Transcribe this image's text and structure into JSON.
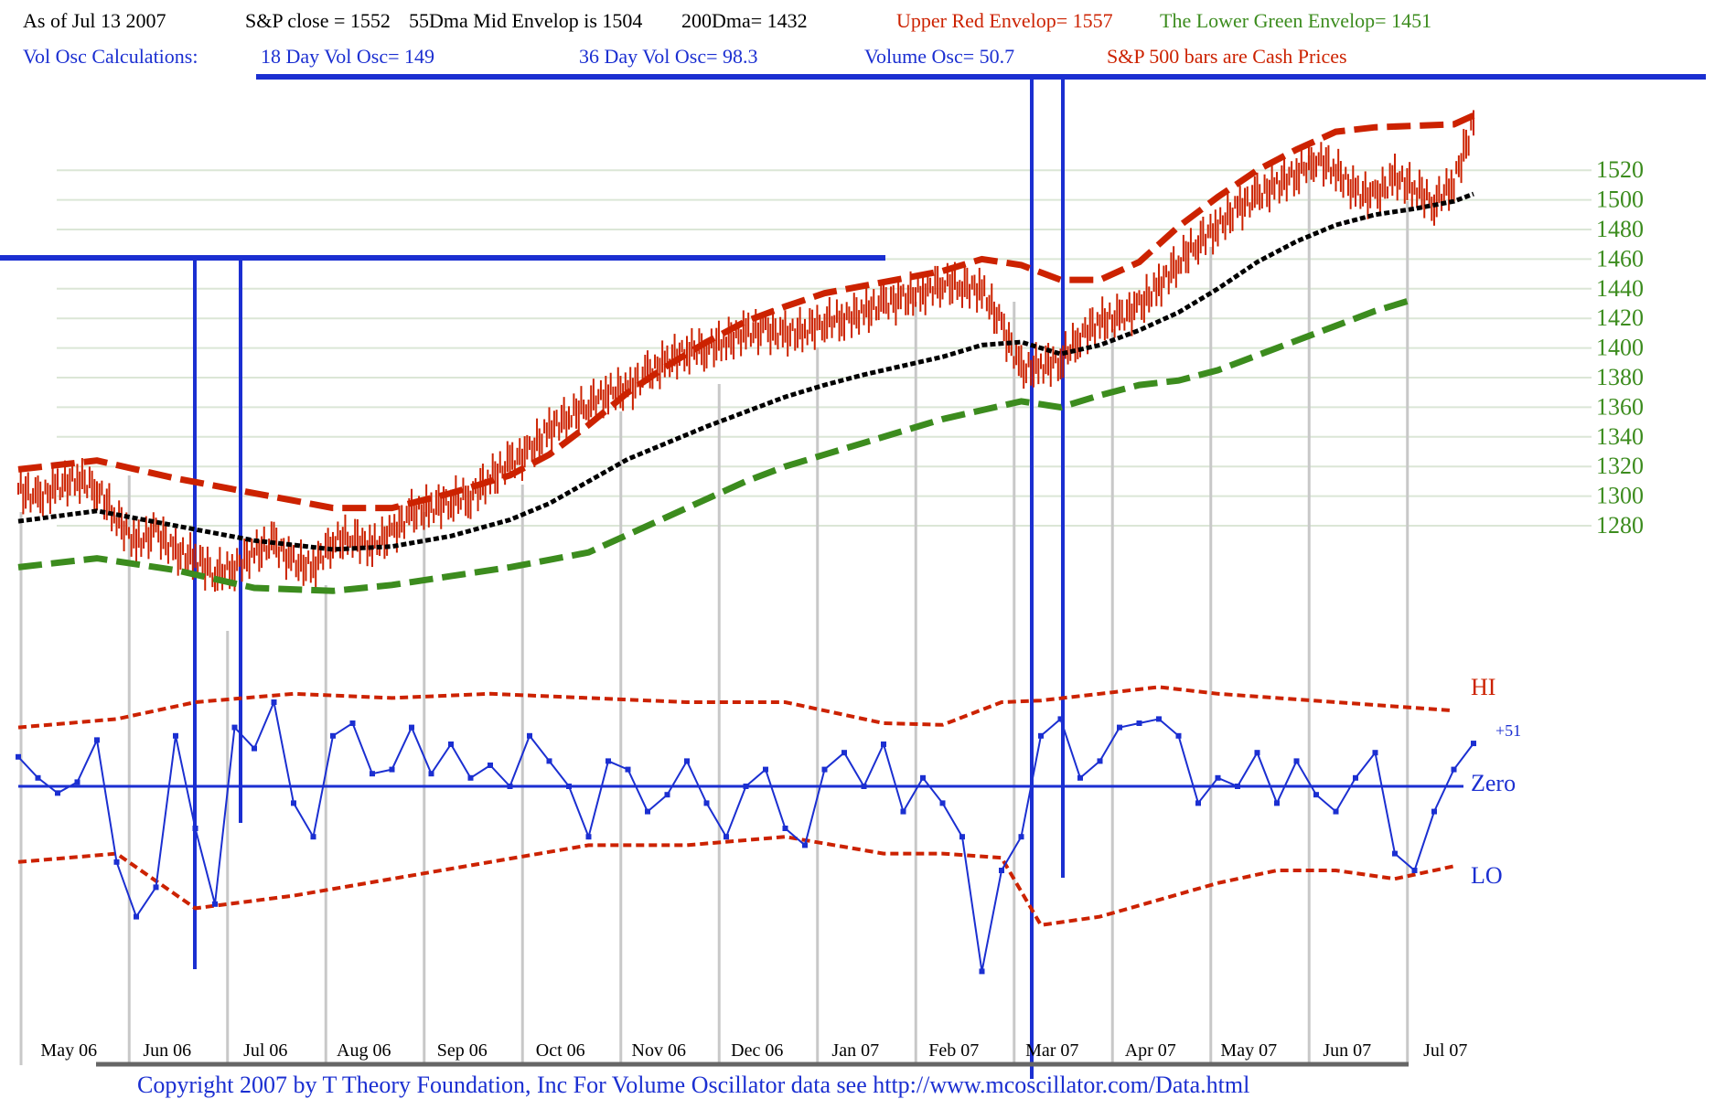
{
  "header": {
    "row1": [
      {
        "text": "As of Jul 13  2007",
        "color": "#000000"
      },
      {
        "text": "S&P close = 1552",
        "color": "#000000"
      },
      {
        "text": "55Dma Mid Envelop is  1504",
        "color": "#000000"
      },
      {
        "text": "200Dma=  1432",
        "color": "#000000"
      },
      {
        "text": "Upper Red Envelop= 1557",
        "color": "#cc2200"
      },
      {
        "text": "The Lower Green Envelop=  1451",
        "color": "#3c8c1e"
      }
    ],
    "row2": [
      {
        "text": "Vol Osc Calculations:",
        "color": "#1b2fd1"
      },
      {
        "text": "18 Day Vol Osc=  149",
        "color": "#1b2fd1"
      },
      {
        "text": "36 Day Vol Osc=  98.3",
        "color": "#1b2fd1"
      },
      {
        "text": "Volume Osc=  50.7",
        "color": "#1b2fd1"
      },
      {
        "text": "S&P 500 bars are Cash Prices",
        "color": "#cc2200"
      }
    ]
  },
  "copyright": "Copyright 2007 by T Theory Foundation, Inc  For Volume Oscillator data see http://www.mcoscillator.com/Data.html",
  "colors": {
    "price_bars": "#cc2200",
    "upper_envelope": "#cc2200",
    "mid_envelope": "#000000",
    "lower_envelope": "#3c8c1e",
    "oscillator": "#1b2fd1",
    "osc_bands": "#cc2200",
    "zero_line": "#1b2fd1",
    "gridlines": "#dbe6d6",
    "vertical_markers": "#c8c8c8",
    "price_axis_labels": "#3c8c1e"
  },
  "chart_data": [
    {
      "type": "line",
      "title": "",
      "y_ticks": [
        1280,
        1300,
        1320,
        1340,
        1360,
        1380,
        1400,
        1420,
        1440,
        1460,
        1480,
        1500,
        1520
      ],
      "x_month_labels": [
        "May 06",
        "Jun 06",
        "Jul 06",
        "Aug 06",
        "Sep 06",
        "Oct 06",
        "Nov 06",
        "Dec 06",
        "Jan 07",
        "Feb 07",
        "Mar 07",
        "Apr 07",
        "May 07",
        "Jun 07",
        "Jul 07"
      ],
      "x_month_index": [
        0.3,
        1.3,
        2.3,
        3.3,
        4.3,
        5.3,
        6.3,
        7.3,
        8.3,
        9.3,
        10.3,
        11.3,
        12.3,
        13.3,
        14.3
      ],
      "x_unit": "months since May 1 2006",
      "series": [
        {
          "name": "S&P 500 (cash)",
          "x": [
            -0.4,
            -0.2,
            0.0,
            0.2,
            0.4,
            0.6,
            0.8,
            1.0,
            1.2,
            1.4,
            1.6,
            1.8,
            2.0,
            2.2,
            2.4,
            2.6,
            2.8,
            3.0,
            3.2,
            3.4,
            3.6,
            3.8,
            4.0,
            4.2,
            4.4,
            4.6,
            4.8,
            5.0,
            5.2,
            5.4,
            5.6,
            5.8,
            6.0,
            6.2,
            6.4,
            6.6,
            6.8,
            7.0,
            7.2,
            7.4,
            7.6,
            7.8,
            8.0,
            8.2,
            8.4,
            8.6,
            8.8,
            9.0,
            9.2,
            9.4,
            9.6,
            9.8,
            10.0,
            10.2,
            10.4,
            10.6,
            10.8,
            11.0,
            11.2,
            11.4,
            11.6,
            11.8,
            12.0,
            12.2,
            12.4,
            12.6,
            12.8,
            13.0,
            13.2,
            13.4,
            13.6,
            13.8,
            14.0,
            14.2,
            14.4
          ],
          "y": [
            1305,
            1298,
            1306,
            1312,
            1305,
            1285,
            1268,
            1276,
            1262,
            1258,
            1248,
            1252,
            1262,
            1268,
            1255,
            1252,
            1270,
            1272,
            1266,
            1275,
            1288,
            1292,
            1297,
            1300,
            1312,
            1322,
            1330,
            1345,
            1354,
            1362,
            1370,
            1372,
            1382,
            1391,
            1398,
            1400,
            1405,
            1410,
            1412,
            1409,
            1412,
            1418,
            1420,
            1424,
            1430,
            1433,
            1438,
            1444,
            1442,
            1439,
            1415,
            1385,
            1388,
            1392,
            1408,
            1418,
            1420,
            1428,
            1442,
            1458,
            1472,
            1482,
            1494,
            1502,
            1510,
            1518,
            1528,
            1520,
            1505,
            1502,
            1515,
            1508,
            1498,
            1512,
            1552
          ]
        },
        {
          "name": "Upper Red Envelop",
          "x": [
            -0.4,
            0.4,
            1.2,
            2.0,
            2.8,
            3.4,
            4.0,
            4.6,
            5.0,
            5.4,
            5.8,
            6.2,
            6.6,
            7.0,
            7.4,
            7.8,
            8.2,
            8.6,
            9.0,
            9.4,
            9.8,
            10.2,
            10.6,
            11.0,
            11.4,
            11.8,
            12.2,
            12.6,
            13.0,
            13.4,
            13.8,
            14.2,
            14.4
          ],
          "y": [
            1318,
            1324,
            1312,
            1302,
            1292,
            1292,
            1302,
            1314,
            1328,
            1348,
            1370,
            1388,
            1404,
            1418,
            1428,
            1437,
            1442,
            1447,
            1452,
            1460,
            1456,
            1446,
            1446,
            1458,
            1482,
            1502,
            1520,
            1534,
            1546,
            1549,
            1550,
            1551,
            1557
          ]
        },
        {
          "name": "55Dma Mid Envelop",
          "x": [
            -0.4,
            0.4,
            1.2,
            2.0,
            2.8,
            3.4,
            4.0,
            4.6,
            5.0,
            5.4,
            5.8,
            6.2,
            6.6,
            7.0,
            7.4,
            7.8,
            8.2,
            8.6,
            9.0,
            9.4,
            9.8,
            10.2,
            10.6,
            11.0,
            11.4,
            11.8,
            12.2,
            12.6,
            13.0,
            13.4,
            13.8,
            14.2,
            14.4
          ],
          "y": [
            1283,
            1290,
            1280,
            1270,
            1264,
            1266,
            1273,
            1284,
            1295,
            1310,
            1325,
            1336,
            1347,
            1357,
            1367,
            1375,
            1382,
            1388,
            1394,
            1402,
            1404,
            1396,
            1402,
            1412,
            1424,
            1440,
            1458,
            1472,
            1483,
            1490,
            1494,
            1499,
            1504
          ]
        },
        {
          "name": "The Lower Green Envelop",
          "x": [
            -0.4,
            0.4,
            1.2,
            2.0,
            2.8,
            3.4,
            4.0,
            4.6,
            5.0,
            5.4,
            5.8,
            6.2,
            6.6,
            7.0,
            7.4,
            7.8,
            8.2,
            8.6,
            9.0,
            9.4,
            9.8,
            10.2,
            10.6,
            11.0,
            11.4,
            11.8,
            12.2,
            12.6,
            13.0,
            13.4,
            13.8
          ],
          "y": [
            1252,
            1258,
            1250,
            1238,
            1236,
            1240,
            1246,
            1252,
            1257,
            1262,
            1274,
            1286,
            1298,
            1310,
            1320,
            1328,
            1336,
            1344,
            1352,
            1358,
            1364,
            1360,
            1368,
            1375,
            1378,
            1385,
            1395,
            1405,
            1415,
            1425,
            1433
          ]
        }
      ]
    },
    {
      "type": "line",
      "title": "",
      "labels": {
        "hi": "HI",
        "zero": "Zero",
        "lo": "LO",
        "last": "+51"
      },
      "series": [
        {
          "name": "Volume Oscillator",
          "x": [
            -0.4,
            -0.2,
            0.0,
            0.2,
            0.4,
            0.6,
            0.8,
            1.0,
            1.2,
            1.4,
            1.6,
            1.8,
            2.0,
            2.2,
            2.4,
            2.6,
            2.8,
            3.0,
            3.2,
            3.4,
            3.6,
            3.8,
            4.0,
            4.2,
            4.4,
            4.6,
            4.8,
            5.0,
            5.2,
            5.4,
            5.6,
            5.8,
            6.0,
            6.2,
            6.4,
            6.6,
            6.8,
            7.0,
            7.2,
            7.4,
            7.6,
            7.8,
            8.0,
            8.2,
            8.4,
            8.6,
            8.8,
            9.0,
            9.2,
            9.4,
            9.6,
            9.8,
            10.0,
            10.2,
            10.4,
            10.6,
            10.8,
            11.0,
            11.2,
            11.4,
            11.6,
            11.8,
            12.0,
            12.2,
            12.4,
            12.6,
            12.8,
            13.0,
            13.2,
            13.4,
            13.6,
            13.8,
            14.0,
            14.2,
            14.4
          ],
          "y": [
            35,
            10,
            -8,
            5,
            55,
            -90,
            -155,
            -120,
            60,
            -50,
            -140,
            70,
            45,
            100,
            -20,
            -60,
            60,
            75,
            15,
            20,
            70,
            15,
            50,
            10,
            25,
            0,
            60,
            30,
            0,
            -60,
            30,
            20,
            -30,
            -10,
            30,
            -20,
            -60,
            0,
            20,
            -50,
            -70,
            20,
            40,
            0,
            50,
            -30,
            10,
            -20,
            -60,
            -220,
            -100,
            -60,
            60,
            80,
            10,
            30,
            70,
            75,
            80,
            60,
            -20,
            10,
            0,
            40,
            -20,
            30,
            -10,
            -30,
            10,
            40,
            -80,
            -100,
            -30,
            20,
            51
          ]
        },
        {
          "name": "HI",
          "x": [
            -0.4,
            0.6,
            1.4,
            2.4,
            3.4,
            4.4,
            5.4,
            6.4,
            7.4,
            8.4,
            9.0,
            9.6,
            10.0,
            10.6,
            11.2,
            11.8,
            12.4,
            13.0,
            13.6,
            14.2
          ],
          "y": [
            70,
            80,
            100,
            110,
            105,
            110,
            105,
            100,
            100,
            75,
            73,
            100,
            102,
            110,
            118,
            110,
            105,
            100,
            95,
            90
          ]
        },
        {
          "name": "LO",
          "x": [
            -0.4,
            0.6,
            1.4,
            2.4,
            3.4,
            4.4,
            5.4,
            6.4,
            7.4,
            8.4,
            9.0,
            9.6,
            10.0,
            10.6,
            11.2,
            11.8,
            12.4,
            13.0,
            13.6,
            14.2
          ],
          "y": [
            -90,
            -80,
            -145,
            -130,
            -110,
            -90,
            -70,
            -70,
            -60,
            -80,
            -80,
            -85,
            -165,
            -155,
            -135,
            -115,
            -100,
            -100,
            -110,
            -95
          ]
        }
      ]
    }
  ]
}
